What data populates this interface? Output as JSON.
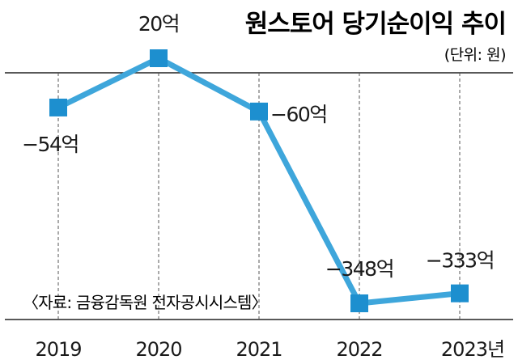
{
  "chart_data": {
    "type": "line",
    "title": "원스토어 당기순이익 추이",
    "unit_note": "(단위: 원)",
    "source": "〈자료: 금융감독원 전자공시시스템〉",
    "categories": [
      "2019",
      "2020",
      "2021",
      "2022",
      "2023년"
    ],
    "values": [
      -54,
      20,
      -60,
      -348,
      -333
    ],
    "value_labels": [
      "−54억",
      "20억",
      "−60억",
      "−348억",
      "−333억"
    ],
    "value_unit": "억 원",
    "ylim": [
      -370,
      35
    ],
    "grid": {
      "vertical_dashed": true,
      "horizontal": false
    },
    "colors": {
      "line": "#3ea6db",
      "marker": "#1d8fcf",
      "text": "#1a1a1a"
    }
  }
}
